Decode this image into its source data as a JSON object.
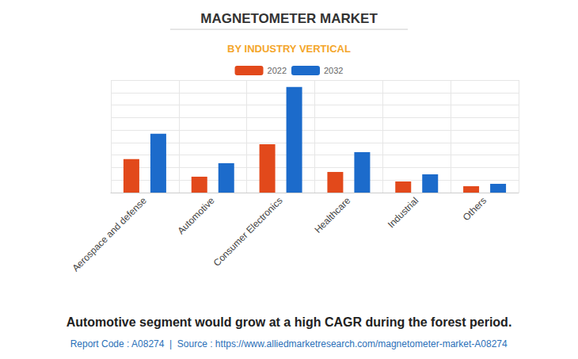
{
  "chart_data": {
    "type": "bar",
    "title": "MAGNETOMETER MARKET",
    "subtitle": "BY INDUSTRY VERTICAL",
    "categories": [
      "Aerospace and defense",
      "Automotive",
      "Consumer Electronics",
      "Healthcare",
      "Industrial",
      "Others"
    ],
    "series": [
      {
        "name": "2022",
        "color": "#e2491b",
        "values": [
          2.67,
          1.27,
          3.87,
          1.65,
          0.89,
          0.51
        ]
      },
      {
        "name": "2032",
        "color": "#1c6bcb",
        "values": [
          4.7,
          2.35,
          8.44,
          3.24,
          1.46,
          0.7
        ]
      }
    ],
    "ylim": [
      0,
      9
    ],
    "yticks": [
      0,
      1,
      2,
      3,
      4,
      5,
      6,
      7,
      8,
      9
    ],
    "grid": true,
    "legend": "top",
    "tick_labels": "x",
    "annotations": [
      "Automotive segment would grow at a high CAGR during the forest period.",
      "Report Code : A08274  |  Source : https://www.alliedmarketresearch.com/magnetometer-market-A08274"
    ]
  }
}
